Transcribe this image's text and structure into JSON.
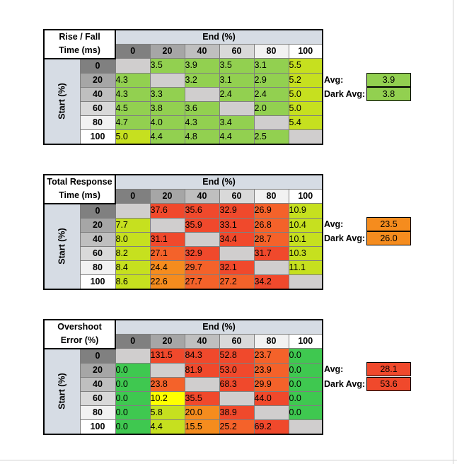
{
  "colors": {
    "gray_header": [
      "#808080",
      "#a6a6a6",
      "#bfbfbf",
      "#d9d9d9",
      "#f2f2f2",
      "#ffffff"
    ],
    "axis_header": "#d6dce4",
    "diagonal": "#d0cece",
    "green": "#92d050",
    "lime": "#c6e01f",
    "yellow": "#ffff00",
    "orange": "#f58c1e",
    "dark_orange": "#f4622a",
    "red": "#f0492c",
    "bright_green": "#3fc850"
  },
  "tables": [
    {
      "title_line1": "Rise / Fall",
      "title_line2": "Time (ms)",
      "end_label": "End (%)",
      "start_label": "Start (%)",
      "columns": [
        "0",
        "20",
        "40",
        "60",
        "80",
        "100"
      ],
      "rows": [
        {
          "label": "0",
          "cells": [
            "",
            "3.5",
            "3.9",
            "3.5",
            "3.1",
            "5.5"
          ]
        },
        {
          "label": "20",
          "cells": [
            "4.3",
            "",
            "3.2",
            "3.1",
            "2.9",
            "5.2"
          ]
        },
        {
          "label": "40",
          "cells": [
            "4.3",
            "3.3",
            "",
            "2.4",
            "2.4",
            "5.0"
          ]
        },
        {
          "label": "60",
          "cells": [
            "4.5",
            "3.8",
            "3.6",
            "",
            "2.0",
            "5.0"
          ]
        },
        {
          "label": "80",
          "cells": [
            "4.7",
            "4.0",
            "4.3",
            "3.4",
            "",
            "5.4"
          ]
        },
        {
          "label": "100",
          "cells": [
            "5.0",
            "4.4",
            "4.8",
            "4.4",
            "2.5",
            ""
          ]
        }
      ],
      "cell_colors": [
        [
          "diag",
          "green",
          "green",
          "green",
          "green",
          "lime"
        ],
        [
          "green",
          "diag",
          "green",
          "green",
          "green",
          "lime"
        ],
        [
          "green",
          "green",
          "diag",
          "green",
          "green",
          "lime"
        ],
        [
          "green",
          "green",
          "green",
          "diag",
          "green",
          "lime"
        ],
        [
          "green",
          "green",
          "green",
          "green",
          "diag",
          "lime"
        ],
        [
          "lime",
          "green",
          "green",
          "green",
          "green",
          "diag"
        ]
      ],
      "avg_label": "Avg:",
      "avg_value": "3.9",
      "avg_color": "#92d050",
      "dark_avg_label": "Dark Avg:",
      "dark_avg_value": "3.8",
      "dark_avg_color": "#92d050"
    },
    {
      "title_line1": "Total Response",
      "title_line2": "Time (ms)",
      "end_label": "End (%)",
      "start_label": "Start (%)",
      "columns": [
        "0",
        "20",
        "40",
        "60",
        "80",
        "100"
      ],
      "rows": [
        {
          "label": "0",
          "cells": [
            "",
            "37.6",
            "35.6",
            "32.9",
            "26.9",
            "10.9"
          ]
        },
        {
          "label": "20",
          "cells": [
            "7.7",
            "",
            "35.9",
            "33.1",
            "26.8",
            "10.4"
          ]
        },
        {
          "label": "40",
          "cells": [
            "8.0",
            "31.1",
            "",
            "34.4",
            "28.7",
            "10.1"
          ]
        },
        {
          "label": "60",
          "cells": [
            "8.2",
            "27.1",
            "32.9",
            "",
            "31.7",
            "10.3"
          ]
        },
        {
          "label": "80",
          "cells": [
            "8.4",
            "24.4",
            "29.7",
            "32.1",
            "",
            "11.1"
          ]
        },
        {
          "label": "100",
          "cells": [
            "8.6",
            "22.6",
            "27.7",
            "27.2",
            "34.2",
            ""
          ]
        }
      ],
      "cell_colors": [
        [
          "diag",
          "red",
          "red",
          "red",
          "dark_orange",
          "lime"
        ],
        [
          "lime",
          "diag",
          "red",
          "red",
          "dark_orange",
          "lime"
        ],
        [
          "lime",
          "red",
          "diag",
          "red",
          "dark_orange",
          "lime"
        ],
        [
          "lime",
          "dark_orange",
          "red",
          "diag",
          "red",
          "lime"
        ],
        [
          "lime",
          "orange",
          "dark_orange",
          "red",
          "diag",
          "lime"
        ],
        [
          "lime",
          "orange",
          "dark_orange",
          "dark_orange",
          "red",
          "diag"
        ]
      ],
      "avg_label": "Avg:",
      "avg_value": "23.5",
      "avg_color": "#f58c1e",
      "dark_avg_label": "Dark Avg:",
      "dark_avg_value": "26.0",
      "dark_avg_color": "#f58c1e"
    },
    {
      "title_line1": "Overshoot",
      "title_line2": "Error (%)",
      "end_label": "End (%)",
      "start_label": "Start (%)",
      "columns": [
        "0",
        "20",
        "40",
        "60",
        "80",
        "100"
      ],
      "rows": [
        {
          "label": "0",
          "cells": [
            "",
            "131.5",
            "84.3",
            "52.8",
            "23.7",
            "0.0"
          ]
        },
        {
          "label": "20",
          "cells": [
            "0.0",
            "",
            "81.9",
            "53.0",
            "23.9",
            "0.0"
          ]
        },
        {
          "label": "40",
          "cells": [
            "0.0",
            "23.8",
            "",
            "68.3",
            "29.9",
            "0.0"
          ]
        },
        {
          "label": "60",
          "cells": [
            "0.0",
            "10.2",
            "35.5",
            "",
            "44.0",
            "0.0"
          ]
        },
        {
          "label": "80",
          "cells": [
            "0.0",
            "5.8",
            "20.0",
            "38.9",
            "",
            "0.0"
          ]
        },
        {
          "label": "100",
          "cells": [
            "0.0",
            "4.4",
            "15.5",
            "25.2",
            "69.2",
            ""
          ]
        }
      ],
      "cell_colors": [
        [
          "diag",
          "red",
          "red",
          "red",
          "dark_orange",
          "bright_green"
        ],
        [
          "bright_green",
          "diag",
          "red",
          "red",
          "dark_orange",
          "bright_green"
        ],
        [
          "bright_green",
          "dark_orange",
          "diag",
          "red",
          "dark_orange",
          "bright_green"
        ],
        [
          "bright_green",
          "yellow",
          "red",
          "diag",
          "red",
          "bright_green"
        ],
        [
          "bright_green",
          "lime",
          "orange",
          "red",
          "diag",
          "bright_green"
        ],
        [
          "bright_green",
          "lime",
          "orange",
          "dark_orange",
          "red",
          "diag"
        ]
      ],
      "avg_label": "Avg:",
      "avg_value": "28.1",
      "avg_color": "#f0492c",
      "dark_avg_label": "Dark Avg:",
      "dark_avg_value": "53.6",
      "dark_avg_color": "#f0492c"
    }
  ]
}
